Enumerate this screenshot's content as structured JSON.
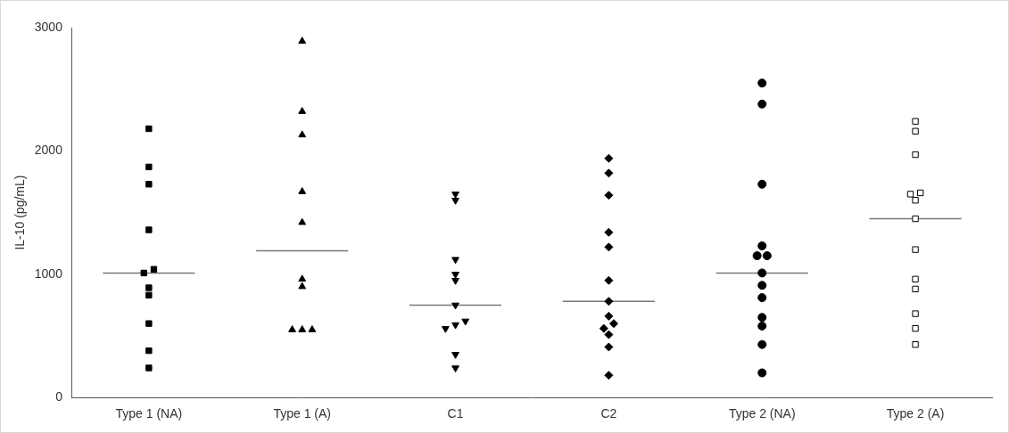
{
  "chart_data": {
    "type": "scatter",
    "y_label": "IL-10 (pg/mL)",
    "color": "#000000",
    "ylim": [
      0,
      3000
    ],
    "yticks": [
      0,
      1000,
      2000,
      3000
    ],
    "grid": false,
    "series": [
      {
        "name": "Type 1 (NA)",
        "marker": "square",
        "values": [
          2180,
          1870,
          1730,
          1360,
          1040,
          1010,
          890,
          830,
          600,
          380,
          240
        ],
        "median": 1010
      },
      {
        "name": "Type 1 (A)",
        "marker": "triangle",
        "values": [
          2890,
          2320,
          2130,
          1670,
          1420,
          960,
          900,
          550,
          550,
          550
        ],
        "median": 1190
      },
      {
        "name": "C1",
        "marker": "triangle-down",
        "values": [
          1650,
          1600,
          1120,
          1000,
          950,
          750,
          620,
          590,
          560,
          350,
          240
        ],
        "median": 750
      },
      {
        "name": "C2",
        "marker": "diamond",
        "values": [
          1940,
          1820,
          1640,
          1340,
          1220,
          950,
          780,
          660,
          600,
          560,
          510,
          410,
          180
        ],
        "median": 780
      },
      {
        "name": "Type 2 (NA)",
        "marker": "circle",
        "values": [
          2550,
          2380,
          1730,
          1230,
          1150,
          1150,
          1010,
          910,
          810,
          650,
          580,
          430,
          200
        ],
        "median": 1010
      },
      {
        "name": "Type 2 (A)",
        "marker": "open-square",
        "values": [
          2240,
          2160,
          1970,
          1660,
          1650,
          1600,
          1450,
          1200,
          960,
          880,
          680,
          560,
          430
        ],
        "median": 1450
      }
    ]
  }
}
